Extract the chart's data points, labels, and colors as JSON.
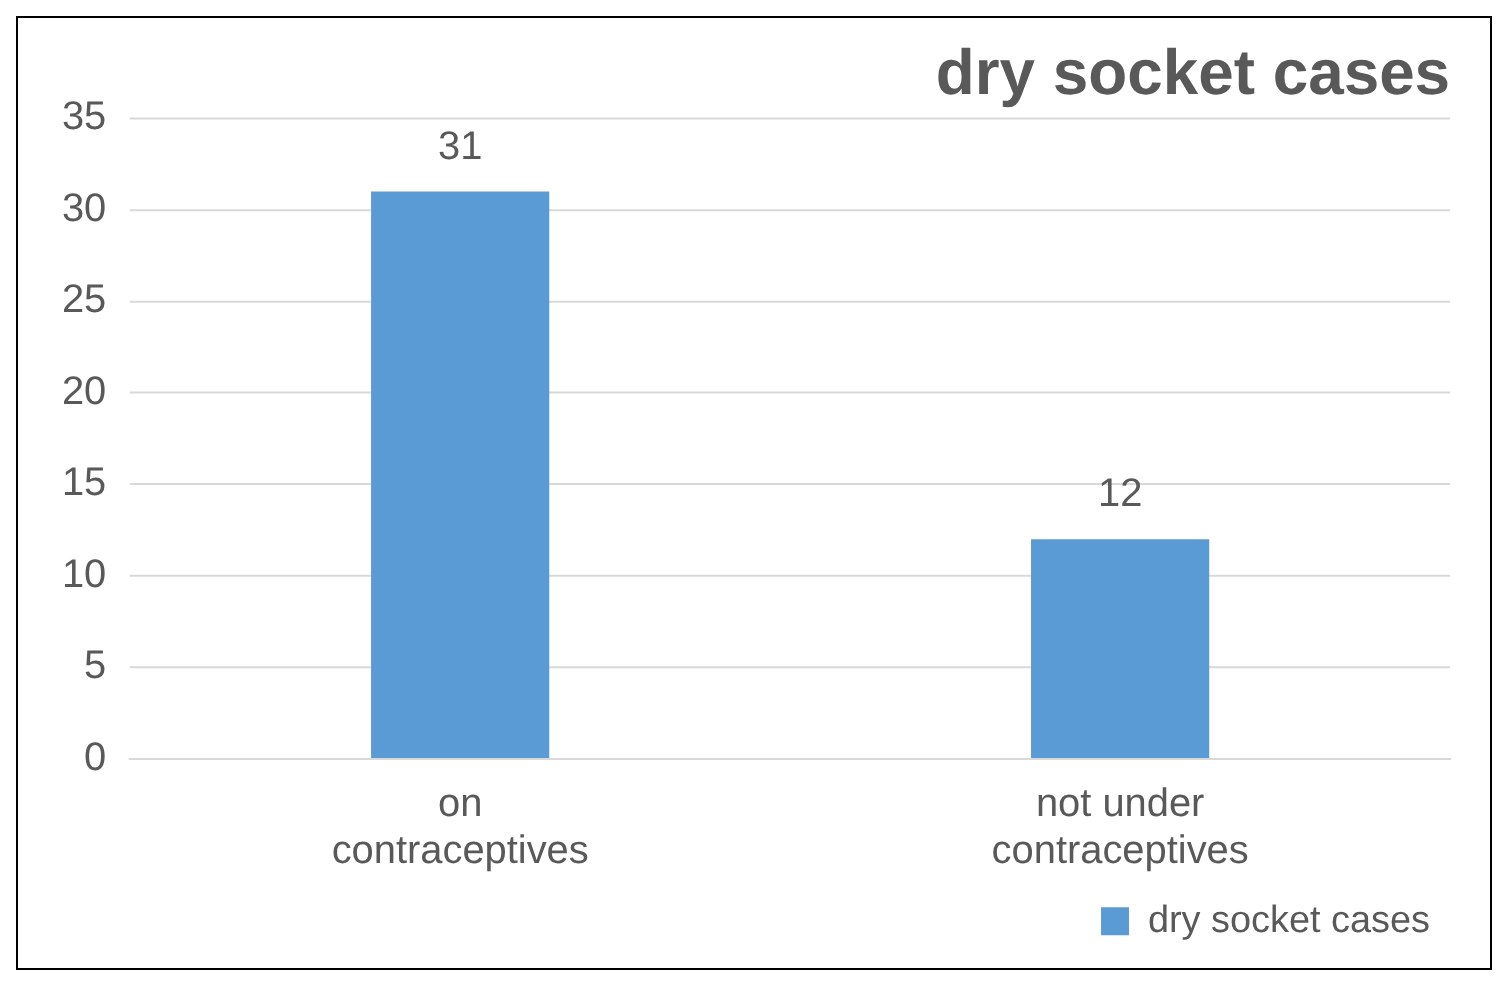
{
  "chart_data": {
    "type": "bar",
    "title": "dry socket cases",
    "categories": [
      "on contraceptives",
      "not under contraceptives"
    ],
    "series": [
      {
        "name": "dry socket cases",
        "color": "#5b9bd5",
        "values": [
          31,
          12
        ]
      }
    ],
    "ylim": [
      0,
      35
    ],
    "yticks": [
      0,
      5,
      10,
      15,
      20,
      25,
      30,
      35
    ],
    "grid": "y",
    "legend": "bottom right",
    "data_labels": true
  }
}
